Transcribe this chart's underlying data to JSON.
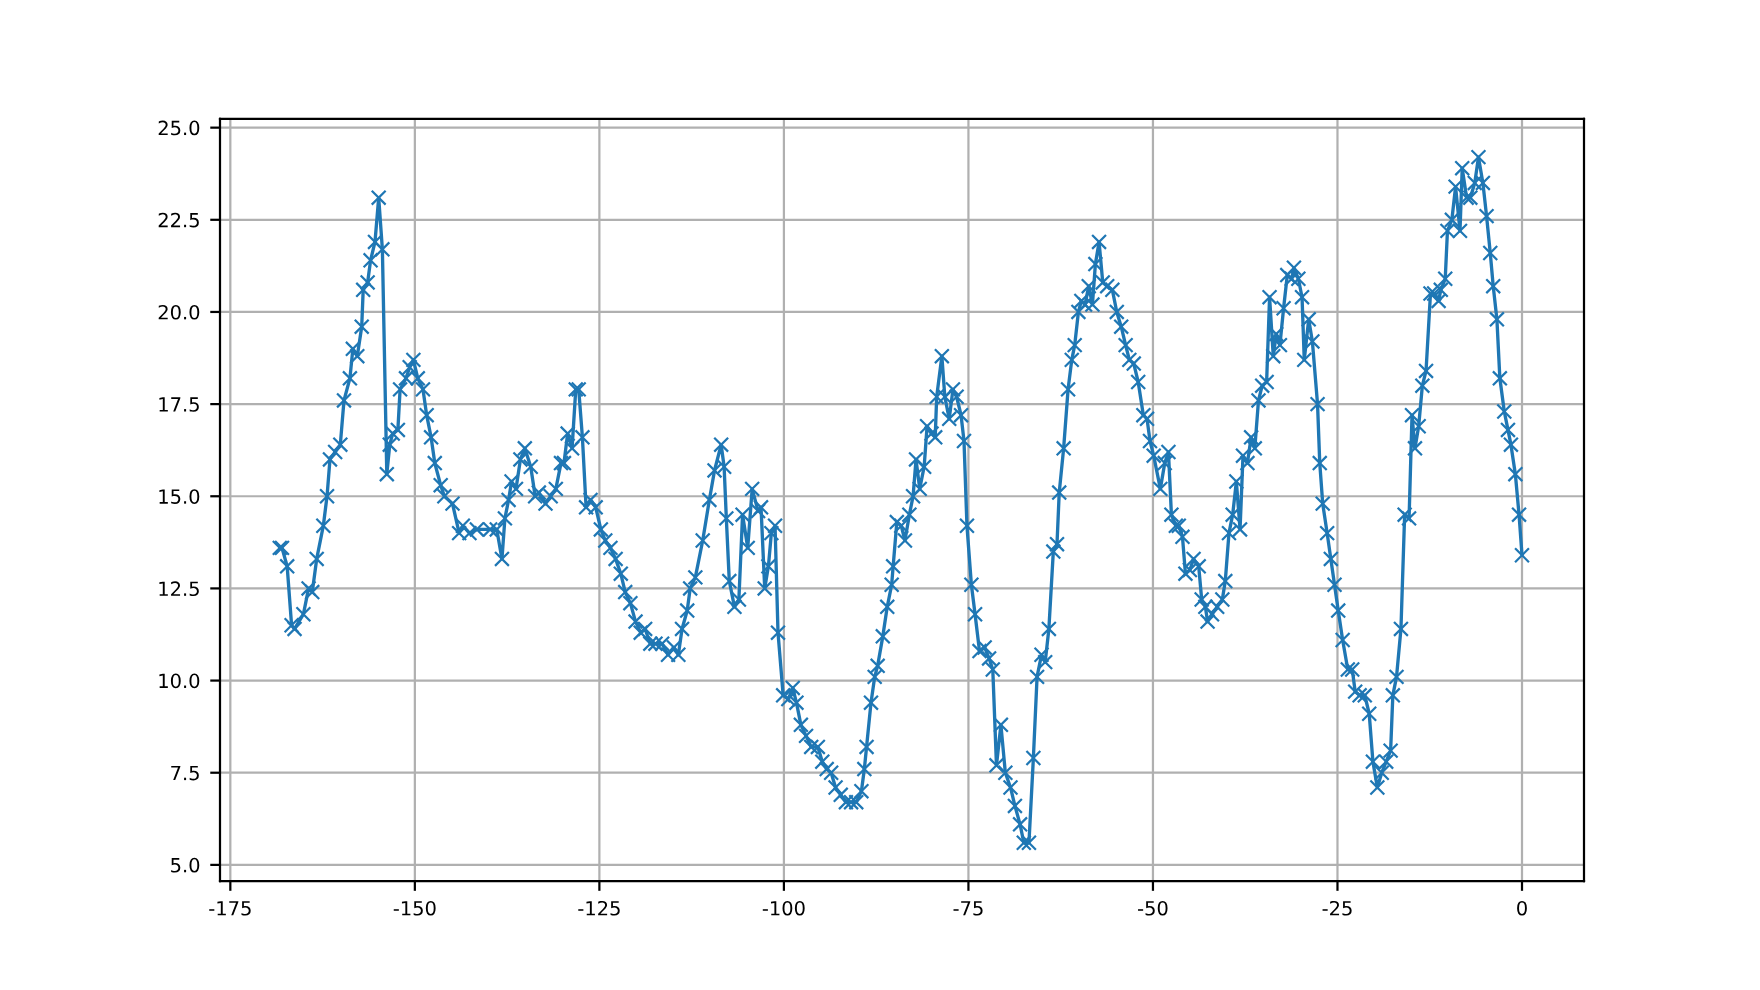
{
  "chart_data": {
    "type": "line",
    "x": [
      -168.3,
      -168.0,
      -167.3,
      -166.7,
      -166.3,
      -165.1,
      -164.4,
      -163.9,
      -163.3,
      -162.4,
      -161.9,
      -161.5,
      -160.8,
      -160.1,
      -159.6,
      -158.8,
      -158.4,
      -157.8,
      -157.2,
      -157.0,
      -156.4,
      -156.0,
      -155.4,
      -154.9,
      -154.4,
      -153.8,
      -153.4,
      -153.0,
      -152.3,
      -152.0,
      -151.2,
      -150.7,
      -150.2,
      -149.6,
      -148.9,
      -148.4,
      -147.8,
      -147.3,
      -146.5,
      -146.0,
      -144.9,
      -144.0,
      -143.5,
      -142.6,
      -141.6,
      -139.8,
      -138.9,
      -138.2,
      -137.8,
      -137.3,
      -136.9,
      -136.3,
      -135.7,
      -135.1,
      -134.3,
      -133.7,
      -133.2,
      -132.3,
      -131.6,
      -130.9,
      -130.2,
      -129.8,
      -129.3,
      -128.7,
      -128.2,
      -127.8,
      -127.3,
      -126.8,
      -126.2,
      -125.5,
      -124.8,
      -124.2,
      -123.5,
      -122.8,
      -122.1,
      -121.5,
      -120.8,
      -120.1,
      -119.4,
      -118.8,
      -118.1,
      -117.4,
      -116.5,
      -115.7,
      -114.9,
      -114.3,
      -113.8,
      -113.1,
      -112.7,
      -112.0,
      -111.0,
      -110.1,
      -109.4,
      -108.5,
      -108.1,
      -107.8,
      -107.4,
      -106.7,
      -106.1,
      -105.6,
      -104.9,
      -104.3,
      -103.5,
      -103.1,
      -102.6,
      -102.1,
      -101.7,
      -101.2,
      -100.8,
      -100.1,
      -99.4,
      -98.8,
      -98.3,
      -97.7,
      -97.0,
      -96.3,
      -95.4,
      -94.8,
      -94.2,
      -93.6,
      -93.0,
      -92.3,
      -91.6,
      -90.9,
      -90.2,
      -89.5,
      -89.1,
      -88.8,
      -88.2,
      -87.7,
      -87.3,
      -86.6,
      -86.0,
      -85.4,
      -85.2,
      -84.7,
      -84.1,
      -83.6,
      -83.0,
      -82.5,
      -82.1,
      -81.6,
      -81.0,
      -80.6,
      -80.0,
      -79.5,
      -79.3,
      -78.6,
      -78.2,
      -77.6,
      -77.1,
      -76.6,
      -76.0,
      -75.6,
      -75.2,
      -74.6,
      -74.1,
      -73.5,
      -72.8,
      -72.2,
      -71.7,
      -71.2,
      -70.6,
      -70.0,
      -69.3,
      -68.7,
      -68.0,
      -67.5,
      -66.8,
      -66.2,
      -65.7,
      -65.1,
      -64.6,
      -64.1,
      -63.5,
      -63.0,
      -62.7,
      -62.1,
      -61.5,
      -61.0,
      -60.6,
      -60.1,
      -59.7,
      -59.2,
      -58.7,
      -58.2,
      -57.8,
      -57.3,
      -56.8,
      -56.2,
      -55.5,
      -54.9,
      -54.3,
      -53.7,
      -53.2,
      -52.6,
      -52.0,
      -51.3,
      -50.8,
      -50.4,
      -49.9,
      -49.0,
      -48.4,
      -47.9,
      -47.5,
      -46.9,
      -46.5,
      -46.0,
      -45.6,
      -45.0,
      -44.5,
      -43.8,
      -43.4,
      -42.9,
      -42.6,
      -42.0,
      -41.3,
      -40.6,
      -40.2,
      -39.7,
      -39.2,
      -38.7,
      -38.2,
      -37.8,
      -37.2,
      -36.7,
      -36.2,
      -35.7,
      -35.2,
      -34.6,
      -34.2,
      -33.7,
      -33.3,
      -32.8,
      -32.3,
      -31.8,
      -31.2,
      -30.9,
      -30.3,
      -29.8,
      -29.5,
      -28.9,
      -28.4,
      -27.7,
      -27.4,
      -27.0,
      -26.4,
      -25.9,
      -25.4,
      -24.9,
      -24.3,
      -23.6,
      -23.0,
      -22.6,
      -22.0,
      -21.3,
      -20.7,
      -20.2,
      -19.6,
      -19.0,
      -18.4,
      -17.8,
      -17.5,
      -17.0,
      -16.4,
      -15.9,
      -15.3,
      -14.9,
      -14.5,
      -14.0,
      -13.5,
      -13.0,
      -12.4,
      -11.9,
      -11.3,
      -11.0,
      -10.4,
      -10.1,
      -9.5,
      -9.0,
      -8.4,
      -8.1,
      -7.5,
      -7.0,
      -6.4,
      -5.9,
      -5.3,
      -4.8,
      -4.3,
      -3.9,
      -3.4,
      -3.0,
      -2.4,
      -1.9,
      -1.5,
      -0.9,
      -0.4,
      0.0
    ],
    "values": [
      13.6,
      13.6,
      13.1,
      11.5,
      11.4,
      11.8,
      12.5,
      12.4,
      13.3,
      14.2,
      15.0,
      16.0,
      16.2,
      16.4,
      17.6,
      18.2,
      19.0,
      18.8,
      19.6,
      20.6,
      20.8,
      21.4,
      21.9,
      23.1,
      21.7,
      15.6,
      16.4,
      16.7,
      16.8,
      17.9,
      18.2,
      18.5,
      18.7,
      18.2,
      17.9,
      17.2,
      16.6,
      15.9,
      15.3,
      15.0,
      14.8,
      14.0,
      14.2,
      14.0,
      14.1,
      14.1,
      14.1,
      13.3,
      14.4,
      14.9,
      15.4,
      15.2,
      16.0,
      16.3,
      15.8,
      15.0,
      15.1,
      14.8,
      15.0,
      15.2,
      15.9,
      15.9,
      16.7,
      16.3,
      17.9,
      17.9,
      16.6,
      14.7,
      14.9,
      14.7,
      14.1,
      13.8,
      13.6,
      13.3,
      12.9,
      12.4,
      12.1,
      11.6,
      11.3,
      11.4,
      11.0,
      11.0,
      11.0,
      10.7,
      10.9,
      10.7,
      11.4,
      11.9,
      12.5,
      12.8,
      13.8,
      14.9,
      15.7,
      16.4,
      15.8,
      14.4,
      12.7,
      12.0,
      12.2,
      14.5,
      13.6,
      15.2,
      14.6,
      14.7,
      12.5,
      13.1,
      14.0,
      14.2,
      11.3,
      9.6,
      9.5,
      9.8,
      9.4,
      8.8,
      8.5,
      8.2,
      8.2,
      7.8,
      7.6,
      7.5,
      7.1,
      6.9,
      6.7,
      6.7,
      6.7,
      7.0,
      7.6,
      8.2,
      9.4,
      10.1,
      10.4,
      11.2,
      12.0,
      12.6,
      13.1,
      14.3,
      14.2,
      13.8,
      14.5,
      15.0,
      16.0,
      15.2,
      15.8,
      16.9,
      16.7,
      16.6,
      17.7,
      18.8,
      17.7,
      17.1,
      17.9,
      17.7,
      17.2,
      16.5,
      14.2,
      12.6,
      11.8,
      10.8,
      10.9,
      10.6,
      10.3,
      7.7,
      8.8,
      7.5,
      7.1,
      6.6,
      6.1,
      5.6,
      5.6,
      7.9,
      10.1,
      10.7,
      10.5,
      11.4,
      13.5,
      13.7,
      15.1,
      16.3,
      17.9,
      18.7,
      19.1,
      20.0,
      20.3,
      20.2,
      20.7,
      20.2,
      21.3,
      21.9,
      20.8,
      20.7,
      20.6,
      20.0,
      19.6,
      19.1,
      18.7,
      18.6,
      18.1,
      17.2,
      17.1,
      16.5,
      16.1,
      15.2,
      15.9,
      16.2,
      14.5,
      14.2,
      14.2,
      13.9,
      12.9,
      13.0,
      13.3,
      13.1,
      12.2,
      12.0,
      11.6,
      11.8,
      12.0,
      12.2,
      12.7,
      14.0,
      14.5,
      15.4,
      14.1,
      16.1,
      15.9,
      16.6,
      16.3,
      17.6,
      18.0,
      18.1,
      20.4,
      18.8,
      19.4,
      19.1,
      20.1,
      21.0,
      20.9,
      21.2,
      20.9,
      20.4,
      18.7,
      19.8,
      19.2,
      17.5,
      15.9,
      14.8,
      14.0,
      13.3,
      12.6,
      11.9,
      11.1,
      10.3,
      10.3,
      9.7,
      9.6,
      9.6,
      9.1,
      7.8,
      7.1,
      7.5,
      7.8,
      8.1,
      9.6,
      10.1,
      11.4,
      14.5,
      14.4,
      17.2,
      16.3,
      16.9,
      18.0,
      18.4,
      20.5,
      20.5,
      20.3,
      20.6,
      20.9,
      22.2,
      22.5,
      23.4,
      22.2,
      23.9,
      23.1,
      23.1,
      23.5,
      24.2,
      23.5,
      22.6,
      21.6,
      20.7,
      19.8,
      18.2,
      17.3,
      16.8,
      16.4,
      15.6,
      14.5,
      13.4
    ],
    "color": "#1f77b4",
    "marker": "cross",
    "xlim": [
      -176.4,
      8.4
    ],
    "ylim": [
      4.56,
      25.24
    ],
    "xticks": [
      -175,
      -150,
      -125,
      -100,
      -75,
      -50,
      -25,
      0
    ],
    "yticks": [
      {
        "value": 5,
        "label": "5.0"
      },
      {
        "value": 7.5,
        "label": "7.5"
      },
      {
        "value": 10,
        "label": "10.0"
      },
      {
        "value": 12.5,
        "label": "12.5"
      },
      {
        "value": 15,
        "label": "15.0"
      },
      {
        "value": 17.5,
        "label": "17.5"
      },
      {
        "value": 20,
        "label": "20.0"
      },
      {
        "value": 22.5,
        "label": "22.5"
      },
      {
        "value": 25,
        "label": "25.0"
      }
    ],
    "grid": true
  }
}
